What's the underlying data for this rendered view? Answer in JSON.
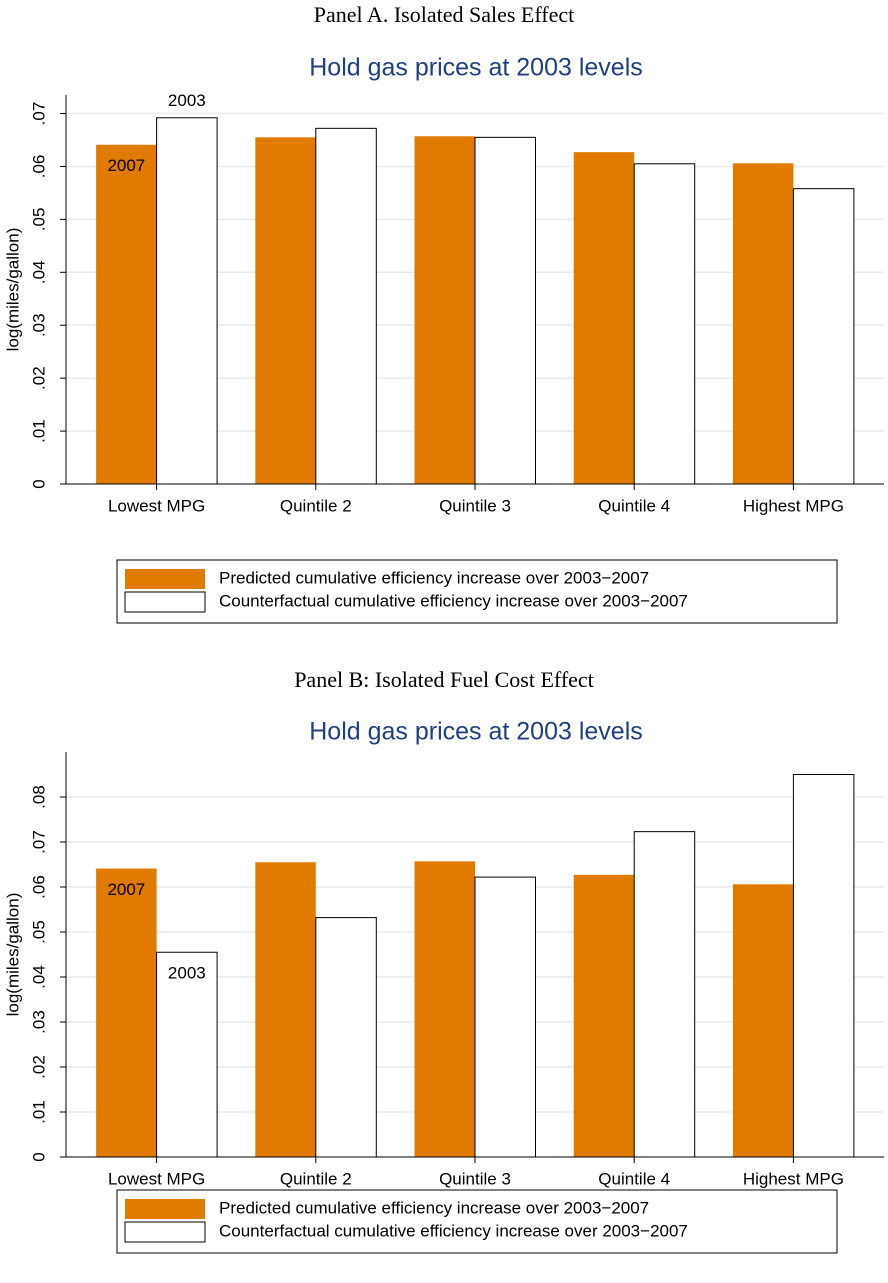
{
  "chart_data": [
    {
      "type": "bar",
      "title": "Panel A. Isolated Sales Effect",
      "subtitle": "Hold gas prices at 2003 levels",
      "ylabel": "log(miles/gallon)",
      "categories": [
        "Lowest MPG",
        "Quintile 2",
        "Quintile 3",
        "Quintile 4",
        "Highest MPG"
      ],
      "series": [
        {
          "name": "Predicted cumulative efficiency increase over 2003−2007",
          "color": "#e07b00",
          "values": [
            0.0641,
            0.0655,
            0.0657,
            0.0627,
            0.0606
          ]
        },
        {
          "name": "Counterfactual cumulative efficiency increase over 2003−2007",
          "color": "#ffffff",
          "values": [
            0.0692,
            0.0672,
            0.0655,
            0.0605,
            0.0558
          ]
        }
      ],
      "annotations": [
        "2007",
        "2003"
      ],
      "ylim": [
        0,
        0.0735
      ],
      "yticks": [
        0,
        {
          "value": 0.01,
          "label": ".01"
        },
        {
          "value": 0.02,
          "label": ".02"
        },
        {
          "value": 0.03,
          "label": ".03"
        },
        {
          "value": 0.04,
          "label": ".04"
        },
        {
          "value": 0.05,
          "label": ".05"
        },
        {
          "value": 0.06,
          "label": ".06"
        },
        {
          "value": 0.07,
          "label": ".07"
        }
      ],
      "grid": true
    },
    {
      "type": "bar",
      "title": "Panel B: Isolated Fuel Cost Effect",
      "subtitle": "Hold gas prices at 2003 levels",
      "ylabel": "log(miles/gallon)",
      "categories": [
        "Lowest MPG",
        "Quintile 2",
        "Quintile 3",
        "Quintile 4",
        "Highest MPG"
      ],
      "series": [
        {
          "name": "Predicted cumulative efficiency increase over 2003−2007",
          "color": "#e07b00",
          "values": [
            0.0641,
            0.0655,
            0.0657,
            0.0627,
            0.0606
          ]
        },
        {
          "name": "Counterfactual cumulative efficiency increase over 2003−2007",
          "color": "#ffffff",
          "values": [
            0.0455,
            0.0532,
            0.0622,
            0.0723,
            0.085
          ]
        }
      ],
      "annotations": [
        "2007",
        "2003"
      ],
      "ylim": [
        0,
        0.09
      ],
      "yticks": [
        0,
        {
          "value": 0.01,
          "label": ".01"
        },
        {
          "value": 0.02,
          "label": ".02"
        },
        {
          "value": 0.03,
          "label": ".03"
        },
        {
          "value": 0.04,
          "label": ".04"
        },
        {
          "value": 0.05,
          "label": ".05"
        },
        {
          "value": 0.06,
          "label": ".06"
        },
        {
          "value": 0.07,
          "label": ".07"
        },
        {
          "value": 0.08,
          "label": ".08"
        }
      ],
      "grid": true
    }
  ]
}
